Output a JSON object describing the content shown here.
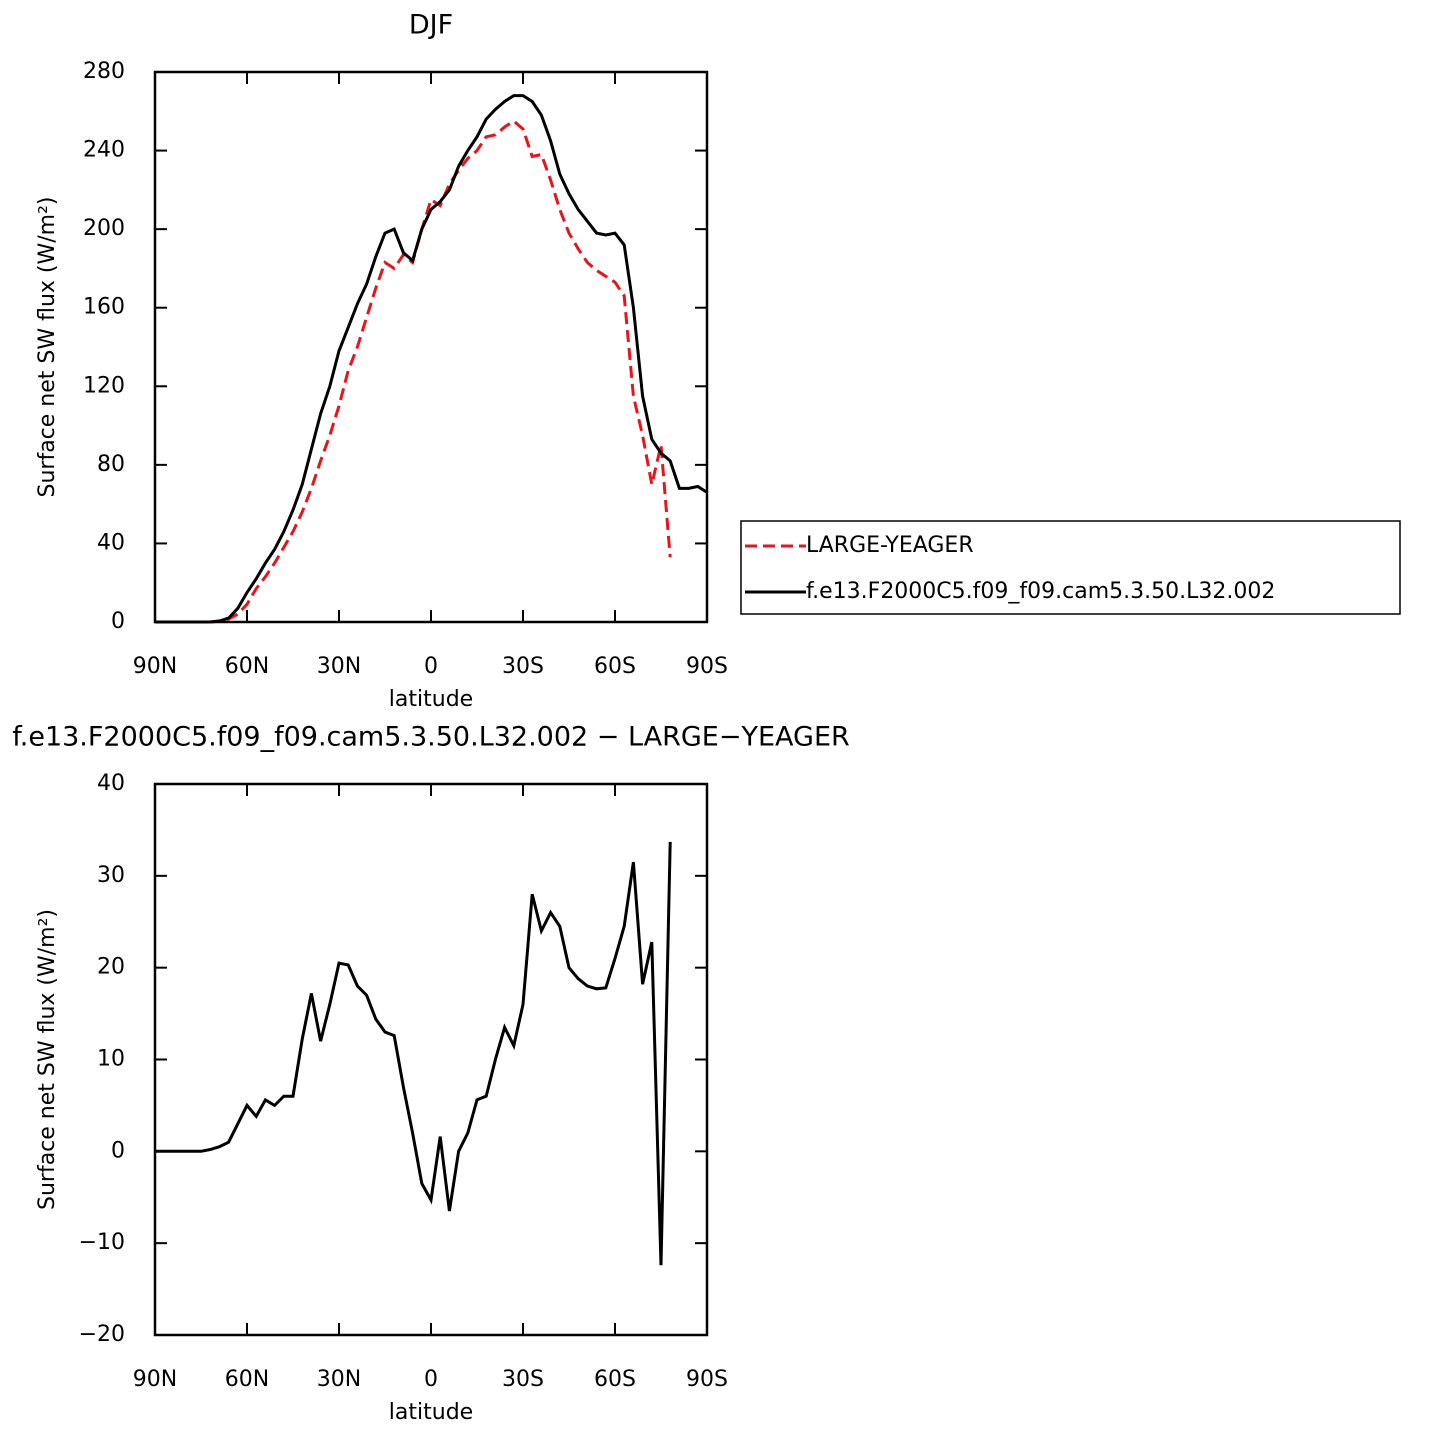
{
  "chart_data": [
    {
      "type": "line",
      "title": "DJF",
      "xlabel": "latitude",
      "ylabel": "Surface net SW flux (W/m²)",
      "x": [
        90,
        87,
        84,
        81,
        78,
        75,
        72,
        69,
        66,
        63,
        60,
        57,
        54,
        51,
        48,
        45,
        42,
        39,
        36,
        33,
        30,
        27,
        24,
        21,
        18,
        15,
        12,
        9,
        6,
        3,
        0,
        -3,
        -6,
        -9,
        -12,
        -15,
        -18,
        -21,
        -24,
        -27,
        -30,
        -33,
        -36,
        -39,
        -42,
        -45,
        -48,
        -51,
        -54,
        -57,
        -60,
        -63,
        -66,
        -69,
        -72,
        -75,
        -78,
        -81,
        -84,
        -87,
        -90
      ],
      "xlim": [
        90,
        -90
      ],
      "xticks": [
        {
          "value": 90,
          "label": "90N"
        },
        {
          "value": 60,
          "label": "60N"
        },
        {
          "value": 30,
          "label": "30N"
        },
        0,
        {
          "value": -30,
          "label": "30S"
        },
        {
          "value": -60,
          "label": "60S"
        },
        {
          "value": -90,
          "label": "90S"
        }
      ],
      "ylim": [
        0,
        280
      ],
      "yticks": [
        0,
        40,
        80,
        120,
        160,
        200,
        240,
        280
      ],
      "legend": "right",
      "series": [
        {
          "name": "LARGE-YEAGER",
          "color": "#e8141b",
          "line_style": "dashed",
          "values": [
            0,
            0,
            0,
            0,
            0,
            0,
            0,
            0.5,
            1.5,
            4,
            9,
            17,
            23,
            30,
            38,
            46,
            56,
            68,
            82,
            95,
            110,
            128,
            140,
            155,
            170,
            183,
            180,
            187,
            183,
            200,
            215,
            212,
            223,
            230,
            236,
            240,
            247,
            248,
            252,
            255,
            251,
            237,
            238,
            225,
            210,
            198,
            190,
            183,
            179,
            176,
            173,
            166,
            115,
            95,
            70,
            90,
            33,
            null,
            null,
            null,
            null
          ]
        },
        {
          "name": "f.e13.F2000C5.f09_f09.cam5.3.50.L32.002",
          "color": "#000000",
          "line_style": "solid",
          "values": [
            0,
            0,
            0,
            0,
            0,
            0,
            0,
            0.5,
            2,
            7,
            15,
            22,
            30,
            37,
            46,
            57,
            70,
            88,
            106,
            120,
            138,
            150,
            162,
            172,
            186,
            198,
            200,
            188,
            184,
            200,
            210,
            214,
            220,
            232,
            240,
            247,
            256,
            261,
            265,
            268,
            268,
            265,
            258,
            245,
            228,
            218,
            210,
            204,
            198,
            197,
            198,
            192,
            160,
            115,
            93,
            86,
            82,
            68,
            68,
            69,
            66
          ]
        }
      ]
    },
    {
      "type": "line",
      "title": "f.e13.F2000C5.f09_f09.cam5.3.50.L32.002 − LARGE−YEAGER",
      "xlabel": "latitude",
      "ylabel": "Surface net SW flux (W/m²)",
      "x": [
        90,
        87,
        84,
        81,
        78,
        75,
        72,
        69,
        66,
        63,
        60,
        57,
        54,
        51,
        48,
        45,
        42,
        39,
        36,
        33,
        30,
        27,
        24,
        21,
        18,
        15,
        12,
        9,
        6,
        3,
        0,
        -3,
        -6,
        -9,
        -12,
        -15,
        -18,
        -21,
        -24,
        -27,
        -30,
        -33,
        -36,
        -39,
        -42,
        -45,
        -48,
        -51,
        -54,
        -57,
        -60,
        -63,
        -66,
        -69,
        -72,
        -75,
        -78,
        -81,
        -84,
        -87,
        -90
      ],
      "xlim": [
        90,
        -90
      ],
      "xticks": [
        {
          "value": 90,
          "label": "90N"
        },
        {
          "value": 60,
          "label": "60N"
        },
        {
          "value": 30,
          "label": "30N"
        },
        0,
        {
          "value": -30,
          "label": "30S"
        },
        {
          "value": -60,
          "label": "60S"
        },
        {
          "value": -90,
          "label": "90S"
        }
      ],
      "ylim": [
        -20,
        40
      ],
      "yticks": [
        {
          "value": -20,
          "label": "−20"
        },
        {
          "value": -10,
          "label": "−10"
        },
        0,
        10,
        20,
        30,
        40
      ],
      "series": [
        {
          "color": "#000000",
          "line_style": "solid",
          "values": [
            0,
            0,
            0,
            0,
            0,
            0,
            0.2,
            0.5,
            1,
            3,
            5,
            3.8,
            5.6,
            5,
            6,
            6,
            12.2,
            17.2,
            12,
            16,
            20.5,
            20.3,
            18,
            17,
            14.4,
            13,
            12.6,
            7,
            2,
            -3.5,
            -5.3,
            1.6,
            -6.5,
            0,
            2,
            5.6,
            6,
            10,
            13.5,
            11.5,
            16,
            28,
            24,
            26,
            24.5,
            20,
            18.8,
            18,
            17.7,
            17.8,
            21,
            24.5,
            31.5,
            18.2,
            22.8,
            -12.4,
            33.7,
            null,
            null,
            null,
            null
          ]
        }
      ]
    }
  ]
}
